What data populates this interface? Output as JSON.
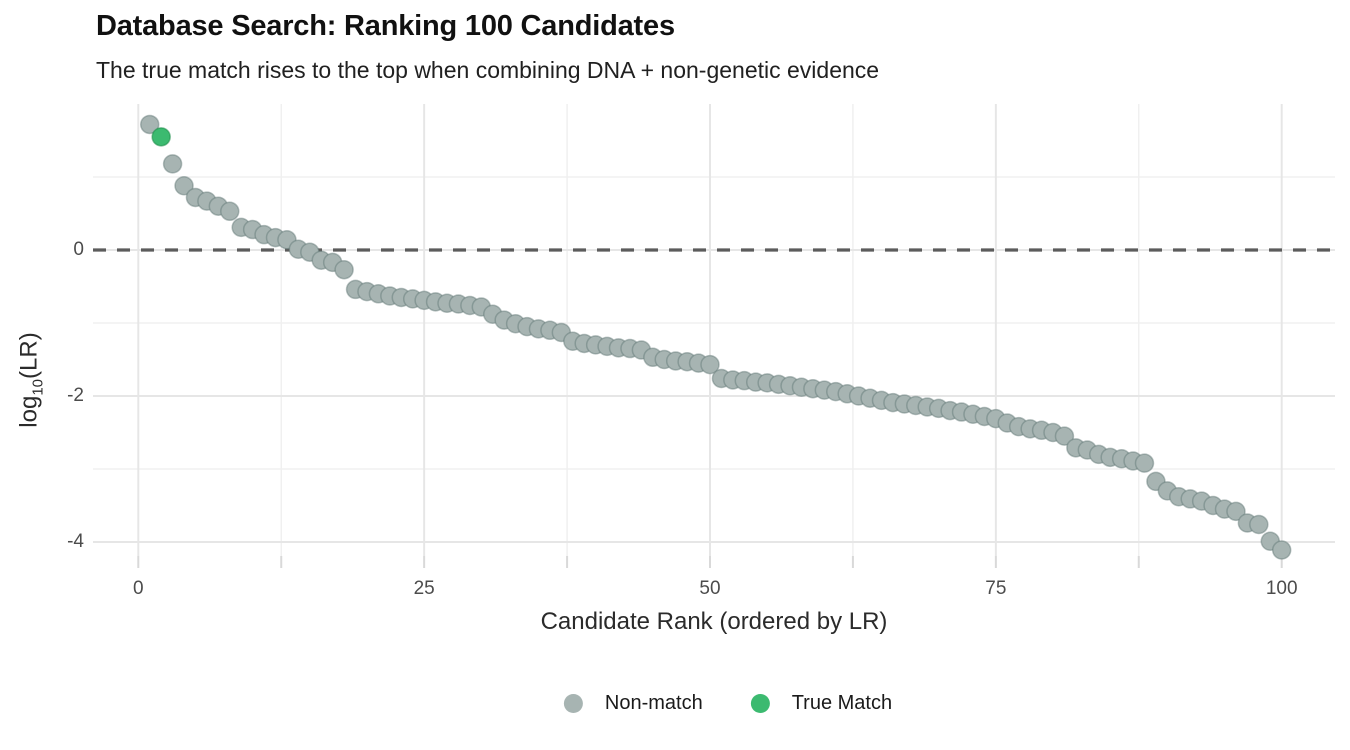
{
  "chart_data": {
    "type": "scatter",
    "title": "Database Search: Ranking 100 Candidates",
    "subtitle": "The true match rises to the top when combining DNA + non-genetic evidence",
    "xlabel": "Candidate Rank (ordered by LR)",
    "ylabel": "log10(LR)",
    "ylabel_parts": {
      "prefix": "log",
      "sub": "10",
      "suffix": "(LR)"
    },
    "xlim": [
      -4,
      104.7
    ],
    "ylim": [
      -4.26,
      1.96
    ],
    "x_ticks": [
      0,
      25,
      50,
      75,
      100
    ],
    "x_minor_ticks": [
      12.5,
      37.5,
      62.5,
      87.5
    ],
    "y_ticks": [
      0,
      -2,
      -4
    ],
    "y_minor_ticks": [
      1,
      -1,
      -3
    ],
    "grid": true,
    "reference_line_y": 0,
    "legend_position": "bottom-center",
    "legend": [
      {
        "label": "Non-match",
        "color": "#a7b4b2"
      },
      {
        "label": "True Match",
        "color": "#3cba70"
      }
    ],
    "true_match_rank": 2,
    "ranks": [
      1,
      2,
      3,
      4,
      5,
      6,
      7,
      8,
      9,
      10,
      11,
      12,
      13,
      14,
      15,
      16,
      17,
      18,
      19,
      20,
      21,
      22,
      23,
      24,
      25,
      26,
      27,
      28,
      29,
      30,
      31,
      32,
      33,
      34,
      35,
      36,
      37,
      38,
      39,
      40,
      41,
      42,
      43,
      44,
      45,
      46,
      47,
      48,
      49,
      50,
      51,
      52,
      53,
      54,
      55,
      56,
      57,
      58,
      59,
      60,
      61,
      62,
      63,
      64,
      65,
      66,
      67,
      68,
      69,
      70,
      71,
      72,
      73,
      74,
      75,
      76,
      77,
      78,
      79,
      80,
      81,
      82,
      83,
      84,
      85,
      86,
      87,
      88,
      89,
      90,
      91,
      92,
      93,
      94,
      95,
      96,
      97,
      98,
      99,
      100
    ],
    "lr_values": [
      1.72,
      1.55,
      1.18,
      0.88,
      0.72,
      0.67,
      0.6,
      0.53,
      0.31,
      0.28,
      0.21,
      0.17,
      0.14,
      0.01,
      -0.03,
      -0.14,
      -0.17,
      -0.27,
      -0.54,
      -0.57,
      -0.6,
      -0.63,
      -0.65,
      -0.67,
      -0.69,
      -0.71,
      -0.73,
      -0.74,
      -0.76,
      -0.78,
      -0.88,
      -0.96,
      -1.01,
      -1.05,
      -1.08,
      -1.1,
      -1.13,
      -1.25,
      -1.28,
      -1.3,
      -1.32,
      -1.34,
      -1.35,
      -1.37,
      -1.47,
      -1.5,
      -1.52,
      -1.53,
      -1.55,
      -1.57,
      -1.76,
      -1.78,
      -1.79,
      -1.81,
      -1.82,
      -1.84,
      -1.86,
      -1.88,
      -1.9,
      -1.92,
      -1.94,
      -1.97,
      -2.0,
      -2.03,
      -2.06,
      -2.09,
      -2.11,
      -2.13,
      -2.15,
      -2.17,
      -2.2,
      -2.22,
      -2.25,
      -2.28,
      -2.31,
      -2.37,
      -2.42,
      -2.45,
      -2.47,
      -2.5,
      -2.55,
      -2.71,
      -2.74,
      -2.8,
      -2.84,
      -2.86,
      -2.89,
      -2.92,
      -3.17,
      -3.3,
      -3.38,
      -3.41,
      -3.44,
      -3.5,
      -3.55,
      -3.58,
      -3.74,
      -3.76,
      -3.99,
      -4.11
    ],
    "colors": {
      "non_match_fill": "#a7b4b2",
      "non_match_stroke": "rgba(95,118,115,0.45)",
      "true_match_fill": "#3cba70",
      "true_match_stroke": "rgba(30,140,72,0.55)",
      "reference_line": "#5c5c5c",
      "grid_major": "#e6e6e6",
      "grid_minor": "#f0f0f0",
      "axis_tick": "#d9d9d9"
    }
  }
}
